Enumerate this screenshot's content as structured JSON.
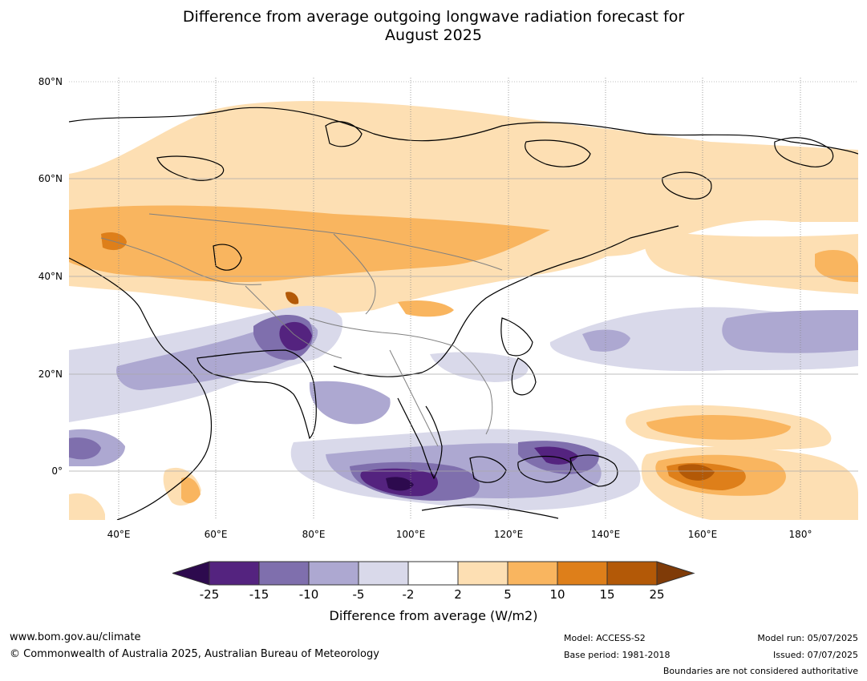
{
  "title_line1": "Difference from average outgoing longwave radiation forecast for",
  "title_line2": "August 2025",
  "lat_labels": [
    "80°N",
    "60°N",
    "40°N",
    "20°N",
    "0°"
  ],
  "lon_labels": [
    "40°E",
    "60°E",
    "80°E",
    "100°E",
    "120°E",
    "140°E",
    "160°E",
    "180°"
  ],
  "colorbar": {
    "ticks": [
      "-25",
      "-15",
      "-10",
      "-5",
      "-2",
      "2",
      "5",
      "10",
      "15",
      "25"
    ],
    "colors": [
      "#2d0a4e",
      "#54237f",
      "#7f6fad",
      "#ada8d1",
      "#d9d9ea",
      "#ffffff",
      "#fddfb3",
      "#f9b55f",
      "#de7f1a",
      "#b35907",
      "#7f3b08"
    ],
    "label": "Difference from average (W/m2)"
  },
  "footer": {
    "website": "www.bom.gov.au/climate",
    "copyright": "© Commonwealth of Australia 2025, Australian Bureau of Meteorology",
    "model": "Model: ACCESS-S2",
    "base_period": "Base period: 1981-2018",
    "model_run": "Model run: 05/07/2025",
    "issued": "Issued: 07/07/2025",
    "disclaimer": "Boundaries are not considered authoritative"
  }
}
